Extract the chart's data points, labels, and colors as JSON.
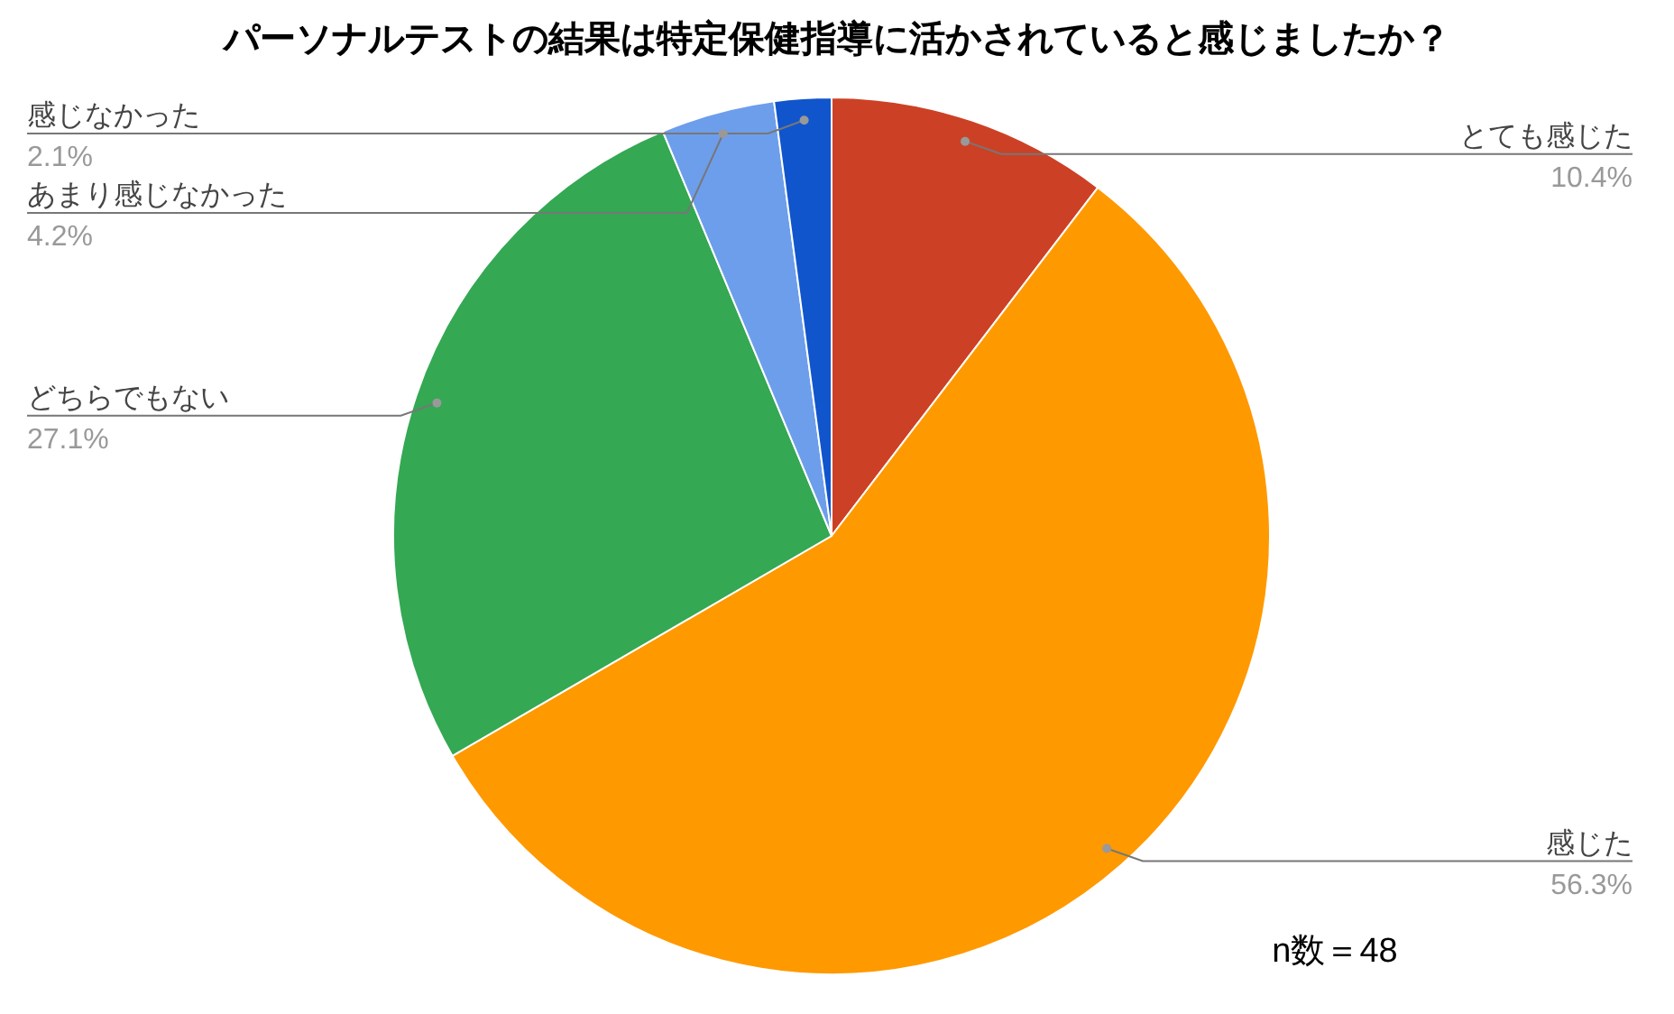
{
  "chart_data": {
    "type": "pie",
    "title": "パーソナルテストの結果は特定保健指導に活かされていると感じましたか？",
    "categories": [
      "とても感じた",
      "感じた",
      "どちらでもない",
      "あまり感じなかった",
      "感じなかった"
    ],
    "values": [
      10.4,
      56.3,
      27.1,
      4.2,
      2.1
    ],
    "colors": [
      "#cc4125",
      "#ff9900",
      "#34a853",
      "#6d9eeb",
      "#1155cc"
    ],
    "value_labels": [
      "10.4%",
      "56.3%",
      "27.1%",
      "4.2%",
      "2.1%"
    ],
    "annotations": [
      "n数＝48"
    ]
  }
}
